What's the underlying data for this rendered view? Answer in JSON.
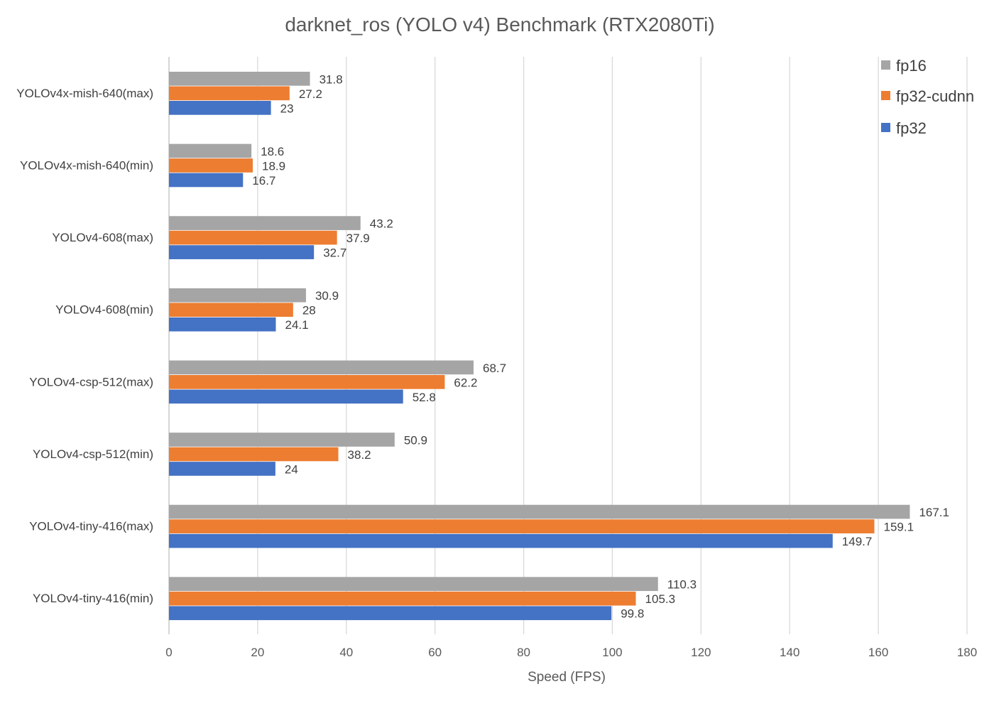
{
  "chart_data": {
    "type": "bar",
    "orientation": "horizontal",
    "title": "darknet_ros (YOLO v4) Benchmark (RTX2080Ti)",
    "xlabel": "Speed (FPS)",
    "ylabel": "",
    "xlim": [
      0,
      180
    ],
    "xticks": [
      0,
      20,
      40,
      60,
      80,
      100,
      120,
      140,
      160,
      180
    ],
    "grid": true,
    "legend_position": "top-right",
    "categories": [
      "YOLOv4x-mish-640(max)",
      "YOLOv4x-mish-640(min)",
      "YOLOv4-608(max)",
      "YOLOv4-608(min)",
      "YOLOv4-csp-512(max)",
      "YOLOv4-csp-512(min)",
      "YOLOv4-tiny-416(max)",
      "YOLOv4-tiny-416(min)"
    ],
    "series": [
      {
        "name": "fp16",
        "color": "#a5a5a5",
        "values": [
          31.8,
          18.6,
          43.2,
          30.9,
          68.7,
          50.9,
          167.1,
          110.3
        ],
        "labels": [
          "31.8",
          "18.6",
          "43.2",
          "30.9",
          "68.7",
          "50.9",
          "167.1",
          "110.3"
        ]
      },
      {
        "name": "fp32-cudnn",
        "color": "#ed7d31",
        "values": [
          27.2,
          18.9,
          37.9,
          28,
          62.2,
          38.2,
          159.1,
          105.3
        ],
        "labels": [
          "27.2",
          "18.9",
          "37.9",
          "28",
          "62.2",
          "38.2",
          "159.1",
          "105.3"
        ]
      },
      {
        "name": "fp32",
        "color": "#4472c4",
        "values": [
          23,
          16.7,
          32.7,
          24.1,
          52.8,
          24,
          149.7,
          99.8
        ],
        "labels": [
          "23",
          "16.7",
          "32.7",
          "24.1",
          "52.8",
          "24",
          "149.7",
          "99.8"
        ]
      }
    ]
  }
}
